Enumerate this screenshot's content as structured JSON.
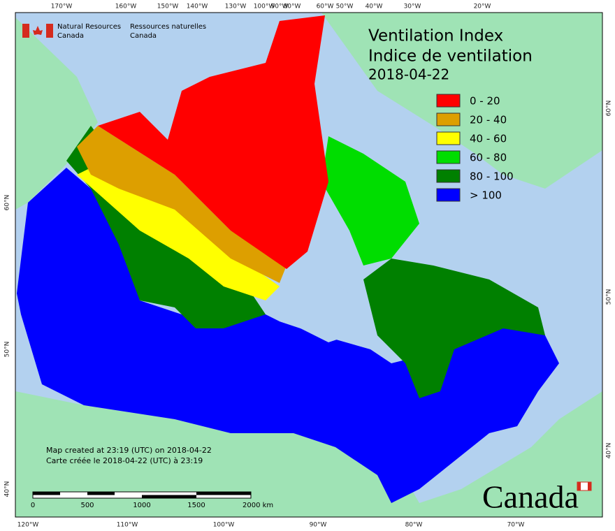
{
  "header": {
    "agency_en": "Natural Resources",
    "country_en": "Canada",
    "agency_fr": "Ressources naturelles",
    "country_fr": "Canada"
  },
  "title": {
    "en": "Ventilation Index",
    "fr": "Indice de ventilation",
    "date": "2018-04-22"
  },
  "legend": [
    {
      "label": "0 - 20",
      "color": "#ff0000"
    },
    {
      "label": "20 - 40",
      "color": "#dd9f00"
    },
    {
      "label": "40 - 60",
      "color": "#ffff00"
    },
    {
      "label": "60 - 80",
      "color": "#00dd00"
    },
    {
      "label": "80 - 100",
      "color": "#008000"
    },
    {
      "label": "> 100",
      "color": "#0000ff"
    }
  ],
  "graticule": {
    "top": [
      "170°W",
      "160°W",
      "150°W",
      "140°W",
      "130°W",
      "100°W",
      "90°W",
      "80°W",
      "60°W",
      "50°W",
      "40°W",
      "30°W",
      "20°W"
    ],
    "bottom": [
      "120°W",
      "110°W",
      "100°W",
      "90°W",
      "80°W",
      "70°W"
    ],
    "left": [
      "60°N",
      "50°N",
      "40°N"
    ],
    "right": [
      "60°N",
      "50°N",
      "40°N"
    ]
  },
  "credits": {
    "en": "Map created at 23:19 (UTC) on 2018-04-22",
    "fr": "Carte créée le 2018-04-22 (UTC) à 23:19"
  },
  "scale": [
    "0",
    "500",
    "1000",
    "1500",
    "2000 km"
  ],
  "wordmark": "Canada"
}
